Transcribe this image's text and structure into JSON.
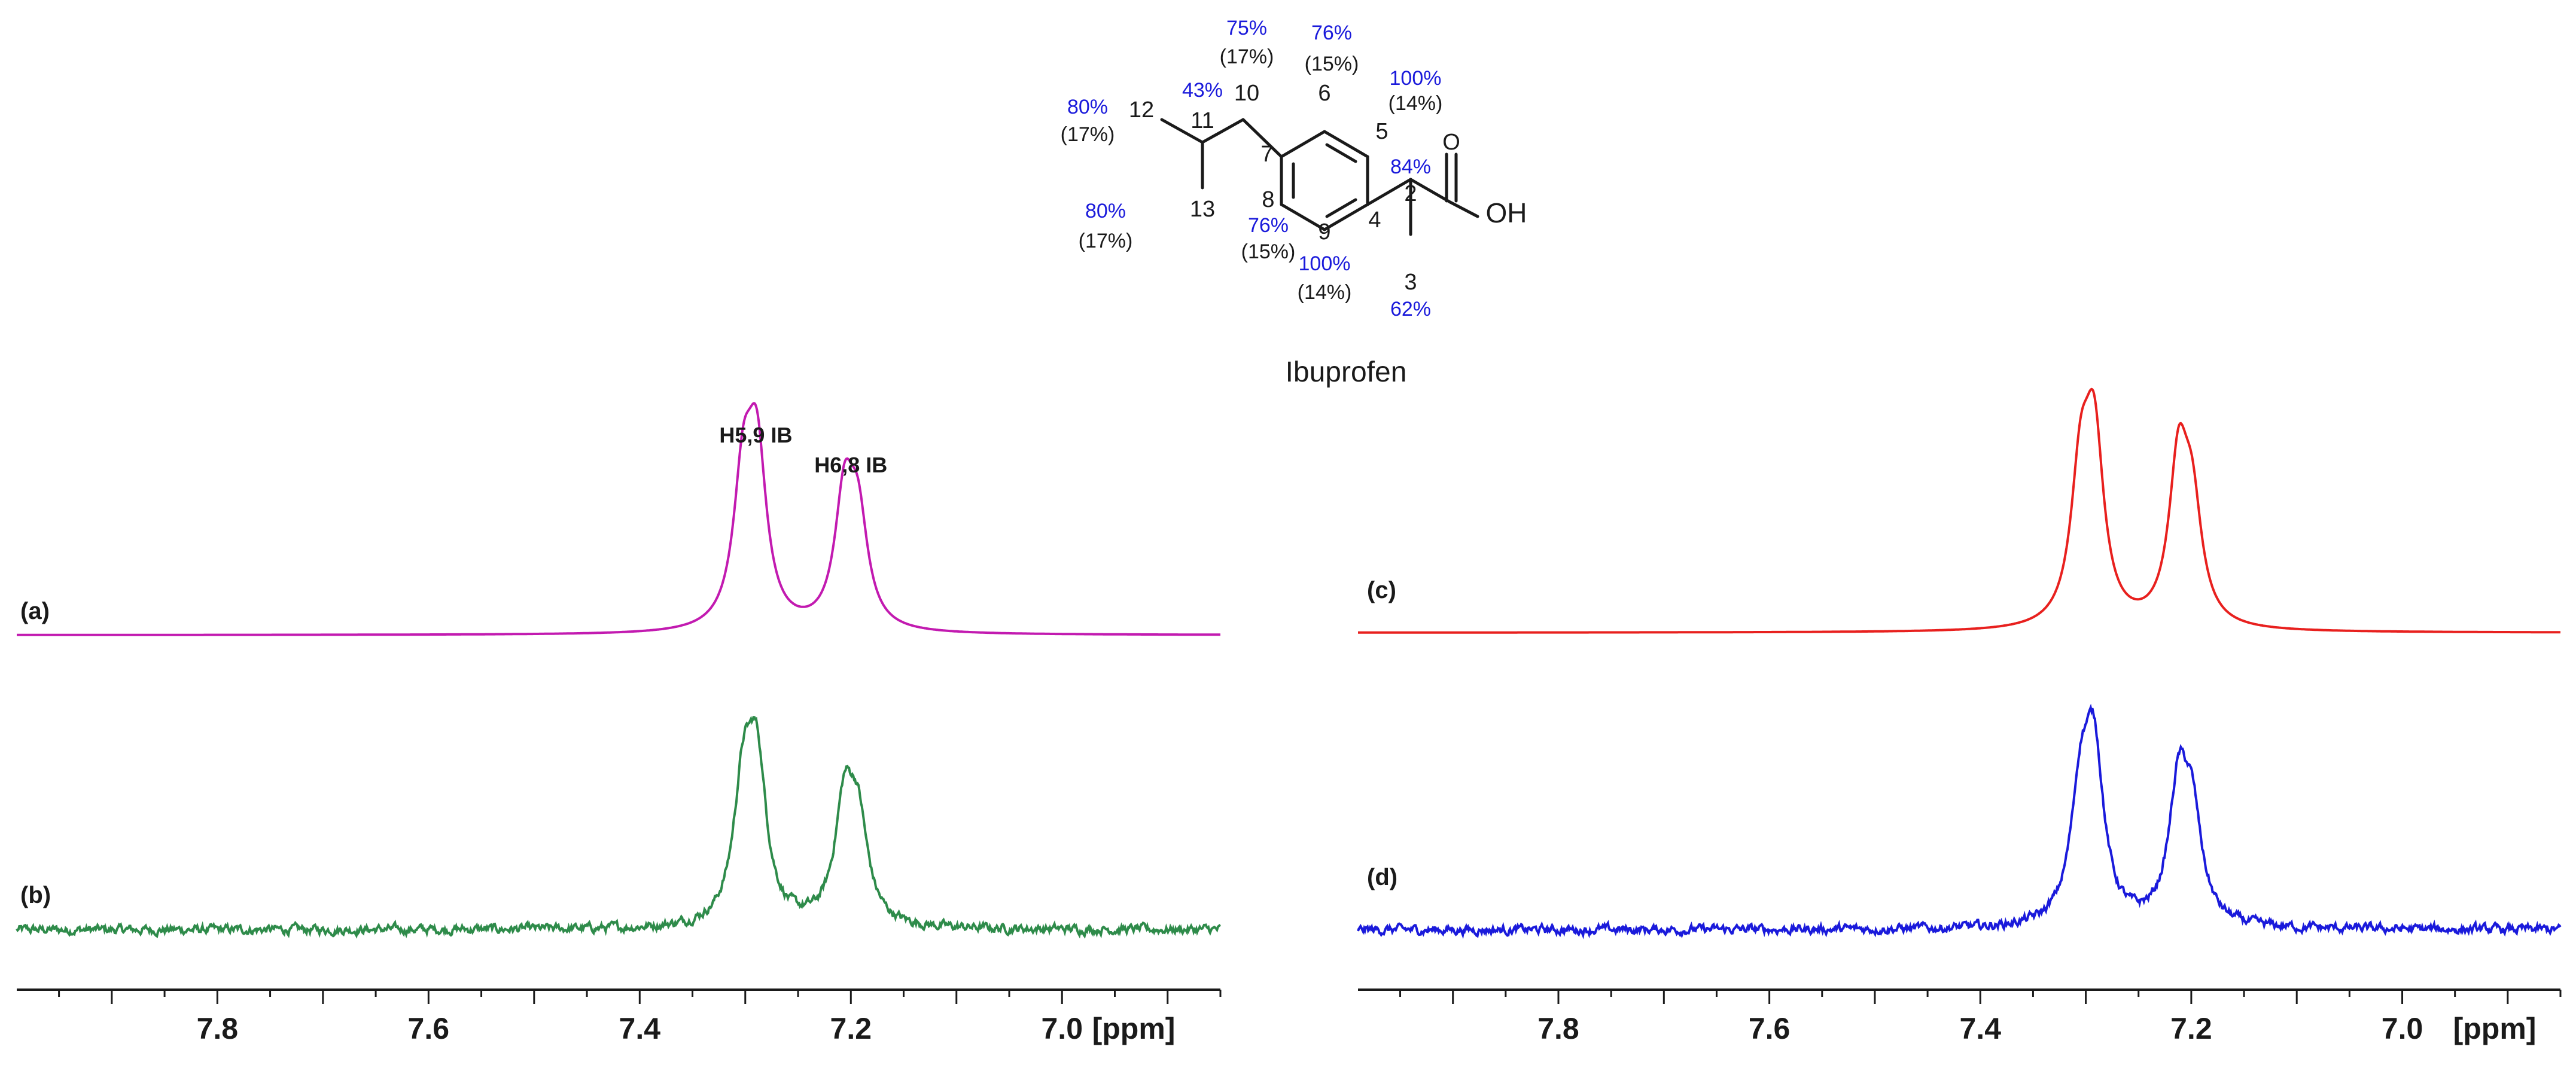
{
  "molecule": {
    "name": "Ibuprofen",
    "oh_label": "OH",
    "o_label": "O",
    "atom_numbers": [
      "2",
      "3",
      "4",
      "5",
      "6",
      "7",
      "8",
      "9",
      "10",
      "11",
      "12",
      "13"
    ],
    "blue_percent": {
      "c10": "75%",
      "c6": "76%",
      "c5": "100%",
      "c12": "80%",
      "c11": "43%",
      "c2": "84%",
      "c13": "80%",
      "c8": "76%",
      "c9": "100%",
      "c3": "62%"
    },
    "black_percent": {
      "c10": "(17%)",
      "c6": "(15%)",
      "c5": "(14%)",
      "c12": "(17%)",
      "c13": "(17%)",
      "c8": "(15%)",
      "c9": "(14%)"
    },
    "colors": {
      "percent_blue": "#1a1adb",
      "text": "#1a1a1a"
    }
  },
  "chart_data": [
    {
      "type": "line",
      "panel": "left",
      "x_unit_label": "[ppm]",
      "xlim": [
        7.99,
        6.85
      ],
      "x_ticks": [
        7.8,
        7.6,
        7.4,
        7.2,
        7.0
      ],
      "x_tick_labels": [
        "7.8",
        "7.6",
        "7.4",
        "7.2",
        "7.0"
      ],
      "peak_labels": [
        {
          "text": "H5,9 IB",
          "x": 7.29
        },
        {
          "text": "H6,8 IB",
          "x": 7.2
        }
      ],
      "series": [
        {
          "name": "(a)",
          "color": "#c21ab0",
          "noise": 0.0,
          "peaks": [
            {
              "x": 7.302,
              "h": 0.72
            },
            {
              "x": 7.289,
              "h": 0.86
            },
            {
              "x": 7.206,
              "h": 0.66
            },
            {
              "x": 7.193,
              "h": 0.52
            }
          ]
        },
        {
          "name": "(b)",
          "color": "#2e8b4a",
          "noise": 1.0,
          "peaks": [
            {
              "x": 7.302,
              "h": 0.66
            },
            {
              "x": 7.289,
              "h": 0.78
            },
            {
              "x": 7.206,
              "h": 0.6
            },
            {
              "x": 7.193,
              "h": 0.48
            }
          ]
        }
      ]
    },
    {
      "type": "line",
      "panel": "right",
      "x_unit_label": "[ppm]",
      "xlim": [
        7.99,
        6.85
      ],
      "x_ticks": [
        7.8,
        7.6,
        7.4,
        7.2,
        7.0
      ],
      "x_tick_labels": [
        "7.8",
        "7.6",
        "7.4",
        "7.2",
        "7.0"
      ],
      "peak_labels": [],
      "series": [
        {
          "name": "(c)",
          "color": "#e8201e",
          "noise": 0.0,
          "peaks": [
            {
              "x": 7.305,
              "h": 0.72
            },
            {
              "x": 7.292,
              "h": 0.92
            },
            {
              "x": 7.212,
              "h": 0.82
            },
            {
              "x": 7.199,
              "h": 0.55
            }
          ]
        },
        {
          "name": "(d)",
          "color": "#1a1adb",
          "noise": 1.0,
          "peaks": [
            {
              "x": 7.305,
              "h": 0.62
            },
            {
              "x": 7.292,
              "h": 0.84
            },
            {
              "x": 7.212,
              "h": 0.68
            },
            {
              "x": 7.199,
              "h": 0.5
            }
          ]
        }
      ]
    }
  ]
}
